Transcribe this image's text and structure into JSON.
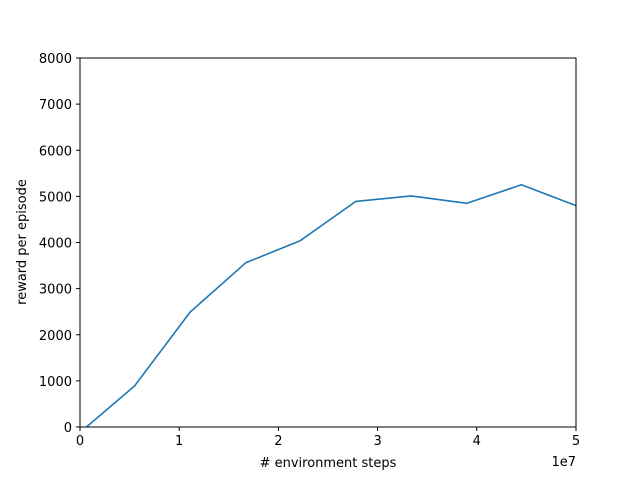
{
  "chart_data": {
    "type": "line",
    "title": "",
    "xlabel": "# environment steps",
    "ylabel": "reward per episode",
    "x_offset_label": "1e7",
    "xlim": [
      0,
      50000000
    ],
    "ylim": [
      0,
      8000
    ],
    "x_ticks": [
      0,
      10000000,
      20000000,
      30000000,
      40000000,
      50000000
    ],
    "x_tick_labels": [
      "0",
      "1",
      "2",
      "3",
      "4",
      "5"
    ],
    "y_ticks": [
      0,
      1000,
      2000,
      3000,
      4000,
      5000,
      6000,
      7000,
      8000
    ],
    "y_tick_labels": [
      "0",
      "1000",
      "2000",
      "3000",
      "4000",
      "5000",
      "6000",
      "7000",
      "8000"
    ],
    "grid": false,
    "series": [
      {
        "color": "#1f77b4",
        "x": [
          0,
          5500000,
          11100000,
          16700000,
          22200000,
          27800000,
          33400000,
          39000000,
          44500000,
          50000000
        ],
        "y": [
          -120,
          890,
          2490,
          3560,
          4040,
          4890,
          5010,
          4850,
          5250,
          4800
        ]
      }
    ]
  }
}
